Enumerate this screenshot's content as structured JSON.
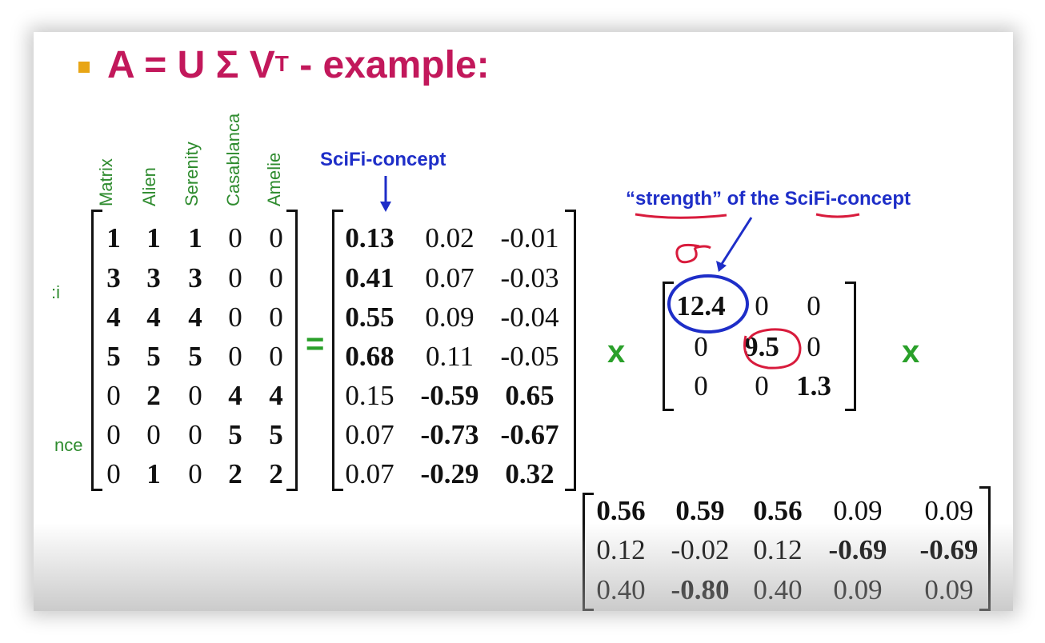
{
  "title": {
    "main": "A = U Σ V",
    "sup": "T",
    "suffix": " - example:"
  },
  "column_labels": [
    "Matrix",
    "Alien",
    "Serenity",
    "Casablanca",
    "Amelie"
  ],
  "row_labels": [
    ":i",
    "nce"
  ],
  "A": [
    [
      {
        "v": "1",
        "b": true
      },
      {
        "v": "1",
        "b": true
      },
      {
        "v": "1",
        "b": true
      },
      {
        "v": "0",
        "b": false
      },
      {
        "v": "0",
        "b": false
      }
    ],
    [
      {
        "v": "3",
        "b": true
      },
      {
        "v": "3",
        "b": true
      },
      {
        "v": "3",
        "b": true
      },
      {
        "v": "0",
        "b": false
      },
      {
        "v": "0",
        "b": false
      }
    ],
    [
      {
        "v": "4",
        "b": true
      },
      {
        "v": "4",
        "b": true
      },
      {
        "v": "4",
        "b": true
      },
      {
        "v": "0",
        "b": false
      },
      {
        "v": "0",
        "b": false
      }
    ],
    [
      {
        "v": "5",
        "b": true
      },
      {
        "v": "5",
        "b": true
      },
      {
        "v": "5",
        "b": true
      },
      {
        "v": "0",
        "b": false
      },
      {
        "v": "0",
        "b": false
      }
    ],
    [
      {
        "v": "0",
        "b": false
      },
      {
        "v": "2",
        "b": true
      },
      {
        "v": "0",
        "b": false
      },
      {
        "v": "4",
        "b": true
      },
      {
        "v": "4",
        "b": true
      }
    ],
    [
      {
        "v": "0",
        "b": false
      },
      {
        "v": "0",
        "b": false
      },
      {
        "v": "0",
        "b": false
      },
      {
        "v": "5",
        "b": true
      },
      {
        "v": "5",
        "b": true
      }
    ],
    [
      {
        "v": "0",
        "b": false
      },
      {
        "v": "1",
        "b": true
      },
      {
        "v": "0",
        "b": false
      },
      {
        "v": "2",
        "b": true
      },
      {
        "v": "2",
        "b": true
      }
    ]
  ],
  "U": [
    [
      {
        "v": "0.13",
        "b": true
      },
      {
        "v": "0.02",
        "b": false
      },
      {
        "v": "-0.01",
        "b": false
      }
    ],
    [
      {
        "v": "0.41",
        "b": true
      },
      {
        "v": "0.07",
        "b": false
      },
      {
        "v": "-0.03",
        "b": false
      }
    ],
    [
      {
        "v": "0.55",
        "b": true
      },
      {
        "v": "0.09",
        "b": false
      },
      {
        "v": "-0.04",
        "b": false
      }
    ],
    [
      {
        "v": "0.68",
        "b": true
      },
      {
        "v": "0.11",
        "b": false
      },
      {
        "v": "-0.05",
        "b": false
      }
    ],
    [
      {
        "v": "0.15",
        "b": false
      },
      {
        "v": "-0.59",
        "b": true
      },
      {
        "v": "0.65",
        "b": true
      }
    ],
    [
      {
        "v": "0.07",
        "b": false
      },
      {
        "v": "-0.73",
        "b": true
      },
      {
        "v": "-0.67",
        "b": true
      }
    ],
    [
      {
        "v": "0.07",
        "b": false
      },
      {
        "v": "-0.29",
        "b": true
      },
      {
        "v": "0.32",
        "b": true
      }
    ]
  ],
  "Sigma": [
    [
      {
        "v": "12.4",
        "b": true
      },
      {
        "v": "0",
        "b": false
      },
      {
        "v": "0",
        "b": false
      }
    ],
    [
      {
        "v": "0",
        "b": false
      },
      {
        "v": "9.5",
        "b": true
      },
      {
        "v": "0",
        "b": false
      }
    ],
    [
      {
        "v": "0",
        "b": false
      },
      {
        "v": "0",
        "b": false
      },
      {
        "v": "1.3",
        "b": true
      }
    ]
  ],
  "VT": [
    [
      {
        "v": "0.56",
        "b": true
      },
      {
        "v": "0.59",
        "b": true
      },
      {
        "v": "0.56",
        "b": true
      },
      {
        "v": "0.09",
        "b": false
      },
      {
        "v": "0.09",
        "b": false
      }
    ],
    [
      {
        "v": "0.12",
        "b": false
      },
      {
        "v": "-0.02",
        "b": false
      },
      {
        "v": "0.12",
        "b": false
      },
      {
        "v": "-0.69",
        "b": true
      },
      {
        "v": "-0.69",
        "b": true
      }
    ],
    [
      {
        "v": "0.40",
        "b": false
      },
      {
        "v": "-0.80",
        "b": true
      },
      {
        "v": "0.40",
        "b": false
      },
      {
        "v": "0.09",
        "b": false
      },
      {
        "v": "0.09",
        "b": false
      }
    ]
  ],
  "operators": {
    "equals": "=",
    "times": "x"
  },
  "annotations": {
    "scifi_concept": "SciFi-concept",
    "strength_quoted": "“strength”",
    "strength_of_the": " of the ",
    "strength_scifi": "SciFi-concept",
    "sigma_handwritten": "σ"
  },
  "colors": {
    "title": "#c2185b",
    "bullet": "#e8a515",
    "labels": "#2e8b2e",
    "annotation_blue": "#1e2ec8",
    "annotation_red": "#d81b3c",
    "operator": "#2aa02a"
  }
}
